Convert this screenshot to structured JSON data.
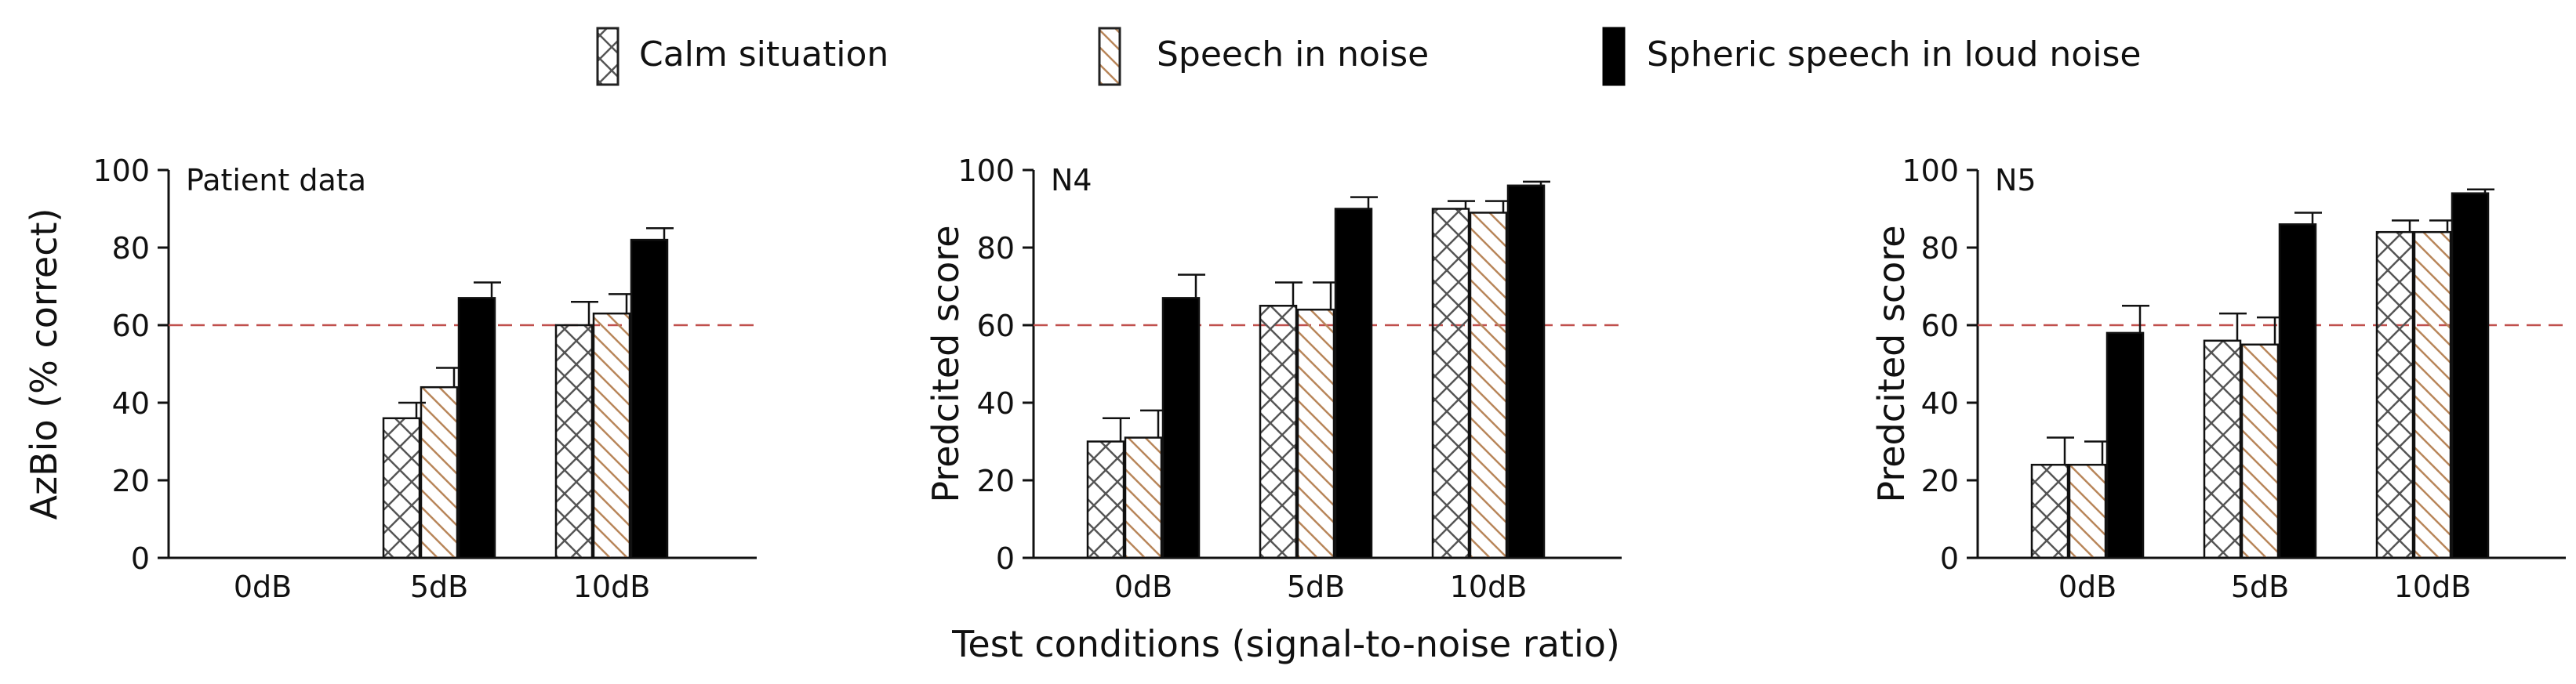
{
  "legend": {
    "items": [
      {
        "label": "Calm situation",
        "pattern": "crosshatch",
        "color": "#555555"
      },
      {
        "label": "Speech in noise",
        "pattern": "diagonal",
        "color": "#b8865a"
      },
      {
        "label": "Spheric speech in loud noise",
        "pattern": "solid",
        "color": "#000000"
      }
    ]
  },
  "shared_xlabel": "Test conditions (signal-to-noise ratio)",
  "reference_line": {
    "value": 60,
    "color": "#c0504d",
    "style": "dashed"
  },
  "chart_data": [
    {
      "type": "bar",
      "panel_label": "Patient data",
      "ylabel": "AzBio (% correct)",
      "ylim": [
        0,
        100
      ],
      "yticks": [
        "0",
        "20",
        "40",
        "60",
        "80",
        "100"
      ],
      "categories": [
        "0dB",
        "5dB",
        "10dB"
      ],
      "series": [
        {
          "name": "Calm situation",
          "values": [
            null,
            36,
            60
          ],
          "errors": [
            null,
            4,
            6
          ]
        },
        {
          "name": "Speech in noise",
          "values": [
            null,
            44,
            63
          ],
          "errors": [
            null,
            5,
            5
          ]
        },
        {
          "name": "Spheric speech in loud noise",
          "values": [
            null,
            67,
            82
          ],
          "errors": [
            null,
            4,
            3
          ]
        }
      ]
    },
    {
      "type": "bar",
      "panel_label": "N4",
      "ylabel": "Predcited score",
      "ylim": [
        0,
        100
      ],
      "yticks": [
        "0",
        "20",
        "40",
        "60",
        "80",
        "100"
      ],
      "categories": [
        "0dB",
        "5dB",
        "10dB"
      ],
      "series": [
        {
          "name": "Calm situation",
          "values": [
            30,
            65,
            90
          ],
          "errors": [
            6,
            6,
            2
          ]
        },
        {
          "name": "Speech in noise",
          "values": [
            31,
            64,
            89
          ],
          "errors": [
            7,
            7,
            3
          ]
        },
        {
          "name": "Spheric speech in loud noise",
          "values": [
            67,
            90,
            96
          ],
          "errors": [
            6,
            3,
            1
          ]
        }
      ]
    },
    {
      "type": "bar",
      "panel_label": "N5",
      "ylabel": "Predcited score",
      "ylim": [
        0,
        100
      ],
      "yticks": [
        "0",
        "20",
        "40",
        "60",
        "80",
        "100"
      ],
      "categories": [
        "0dB",
        "5dB",
        "10dB"
      ],
      "series": [
        {
          "name": "Calm situation",
          "values": [
            24,
            56,
            84
          ],
          "errors": [
            7,
            7,
            3
          ]
        },
        {
          "name": "Speech in noise",
          "values": [
            24,
            55,
            84
          ],
          "errors": [
            6,
            7,
            3
          ]
        },
        {
          "name": "Spheric speech in loud noise",
          "values": [
            58,
            86,
            94
          ],
          "errors": [
            7,
            3,
            1
          ]
        }
      ]
    }
  ]
}
